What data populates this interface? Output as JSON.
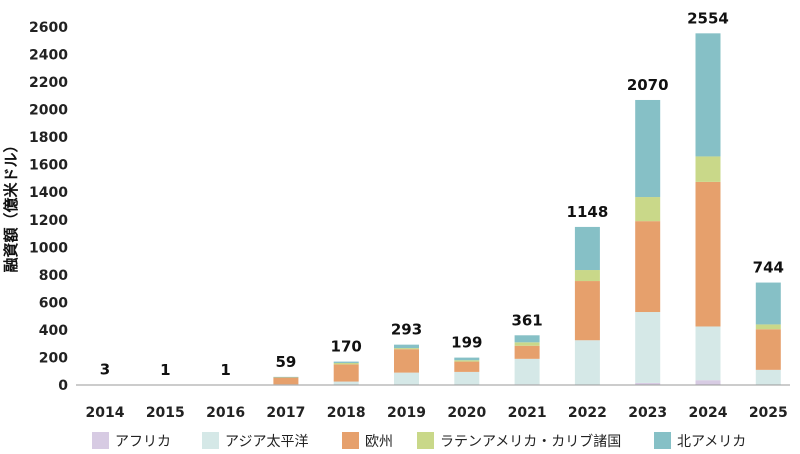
{
  "chart_data": {
    "type": "bar",
    "stacked": true,
    "title": "",
    "xlabel": "",
    "ylabel": "融資額（億米ドル）",
    "ylim": [
      0,
      2600
    ],
    "yticks": [
      0,
      200,
      400,
      600,
      800,
      1000,
      1200,
      1400,
      1600,
      1800,
      2000,
      2200,
      2400,
      2600
    ],
    "grid": false,
    "legend_position": "bottom",
    "categories": [
      "2014",
      "2015",
      "2016",
      "2017",
      "2018",
      "2019",
      "2020",
      "2021",
      "2022",
      "2023",
      "2024",
      "2025"
    ],
    "totals": [
      3,
      1,
      1,
      59,
      170,
      293,
      199,
      361,
      1148,
      2070,
      2554,
      744
    ],
    "series": [
      {
        "name": "アフリカ",
        "color": "#d7cbe3",
        "values": [
          0,
          0,
          0,
          0,
          0,
          0,
          0,
          5,
          0,
          15,
          35,
          0
        ]
      },
      {
        "name": "アジア太平洋",
        "color": "#d5e8e7",
        "values": [
          3,
          1,
          1,
          5,
          25,
          90,
          95,
          185,
          325,
          515,
          390,
          110
        ]
      },
      {
        "name": "欧州",
        "color": "#e6a06c",
        "values": [
          0,
          0,
          0,
          50,
          125,
          170,
          75,
          95,
          430,
          660,
          1050,
          295
        ]
      },
      {
        "name": "ラテンアメリカ・カリブ諸国",
        "color": "#c9d889",
        "values": [
          0,
          0,
          0,
          2,
          10,
          8,
          10,
          25,
          80,
          175,
          185,
          35
        ]
      },
      {
        "name": "北アメリカ",
        "color": "#86c0c6",
        "values": [
          0,
          0,
          0,
          2,
          10,
          25,
          19,
          51,
          313,
          705,
          894,
          304
        ]
      }
    ]
  }
}
